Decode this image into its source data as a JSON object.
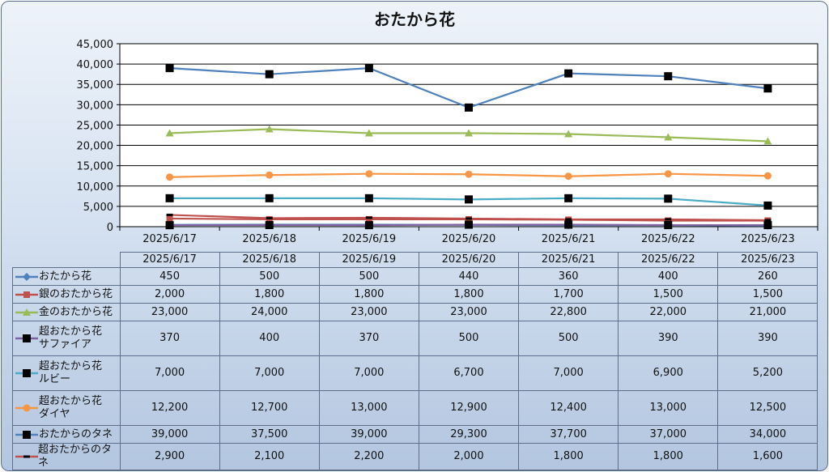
{
  "chart_data": {
    "type": "line",
    "title": "おたから花",
    "categories": [
      "2025/6/17",
      "2025/6/18",
      "2025/6/19",
      "2025/6/20",
      "2025/6/21",
      "2025/6/22",
      "2025/6/23"
    ],
    "ylim": [
      0,
      45000
    ],
    "yticks": [
      "0",
      "5,000",
      "10,000",
      "15,000",
      "20,000",
      "25,000",
      "30,000",
      "35,000",
      "40,000",
      "45,000"
    ],
    "grid": true,
    "legend": "table",
    "series": [
      {
        "name": "おたから花",
        "color": "#4f81bd",
        "marker": "diamond",
        "values": [
          450,
          500,
          500,
          440,
          360,
          400,
          260
        ],
        "labels": [
          "450",
          "500",
          "500",
          "440",
          "360",
          "400",
          "260"
        ]
      },
      {
        "name": "銀のおたから花",
        "color": "#c0504d",
        "marker": "square",
        "values": [
          2000,
          1800,
          1800,
          1800,
          1700,
          1500,
          1500
        ],
        "labels": [
          "2,000",
          "1,800",
          "1,800",
          "1,800",
          "1,700",
          "1,500",
          "1,500"
        ]
      },
      {
        "name": "金のおたから花",
        "color": "#9bbb59",
        "marker": "triangle",
        "values": [
          23000,
          24000,
          23000,
          23000,
          22800,
          22000,
          21000
        ],
        "labels": [
          "23,000",
          "24,000",
          "23,000",
          "23,000",
          "22,800",
          "22,000",
          "21,000"
        ]
      },
      {
        "name": "超おたから花\nサファイア",
        "color": "#8064a2",
        "marker": "square-black",
        "values": [
          370,
          400,
          370,
          500,
          500,
          390,
          390
        ],
        "labels": [
          "370",
          "400",
          "370",
          "500",
          "500",
          "390",
          "390"
        ]
      },
      {
        "name": "超おたから花\nルビー",
        "color": "#4bacc6",
        "marker": "square-black",
        "values": [
          7000,
          7000,
          7000,
          6700,
          7000,
          6900,
          5200
        ],
        "labels": [
          "7,000",
          "7,000",
          "7,000",
          "6,700",
          "7,000",
          "6,900",
          "5,200"
        ]
      },
      {
        "name": "超おたから花\nダイヤ",
        "color": "#f79646",
        "marker": "circle",
        "values": [
          12200,
          12700,
          13000,
          12900,
          12400,
          13000,
          12500
        ],
        "labels": [
          "12,200",
          "12,700",
          "13,000",
          "12,900",
          "12,400",
          "13,000",
          "12,500"
        ]
      },
      {
        "name": "おたからのタネ",
        "color": "#4f81bd",
        "marker": "square-black",
        "values": [
          39000,
          37500,
          39000,
          29300,
          37700,
          37000,
          34000
        ],
        "labels": [
          "39,000",
          "37,500",
          "39,000",
          "29,300",
          "37,700",
          "37,000",
          "34,000"
        ]
      },
      {
        "name": "超おたからのタネ",
        "color": "#c0504d",
        "marker": "dash",
        "values": [
          2900,
          2100,
          2200,
          2000,
          1800,
          1800,
          1600
        ],
        "labels": [
          "2,900",
          "2,100",
          "2,200",
          "2,000",
          "1,800",
          "1,800",
          "1,600"
        ]
      }
    ]
  }
}
